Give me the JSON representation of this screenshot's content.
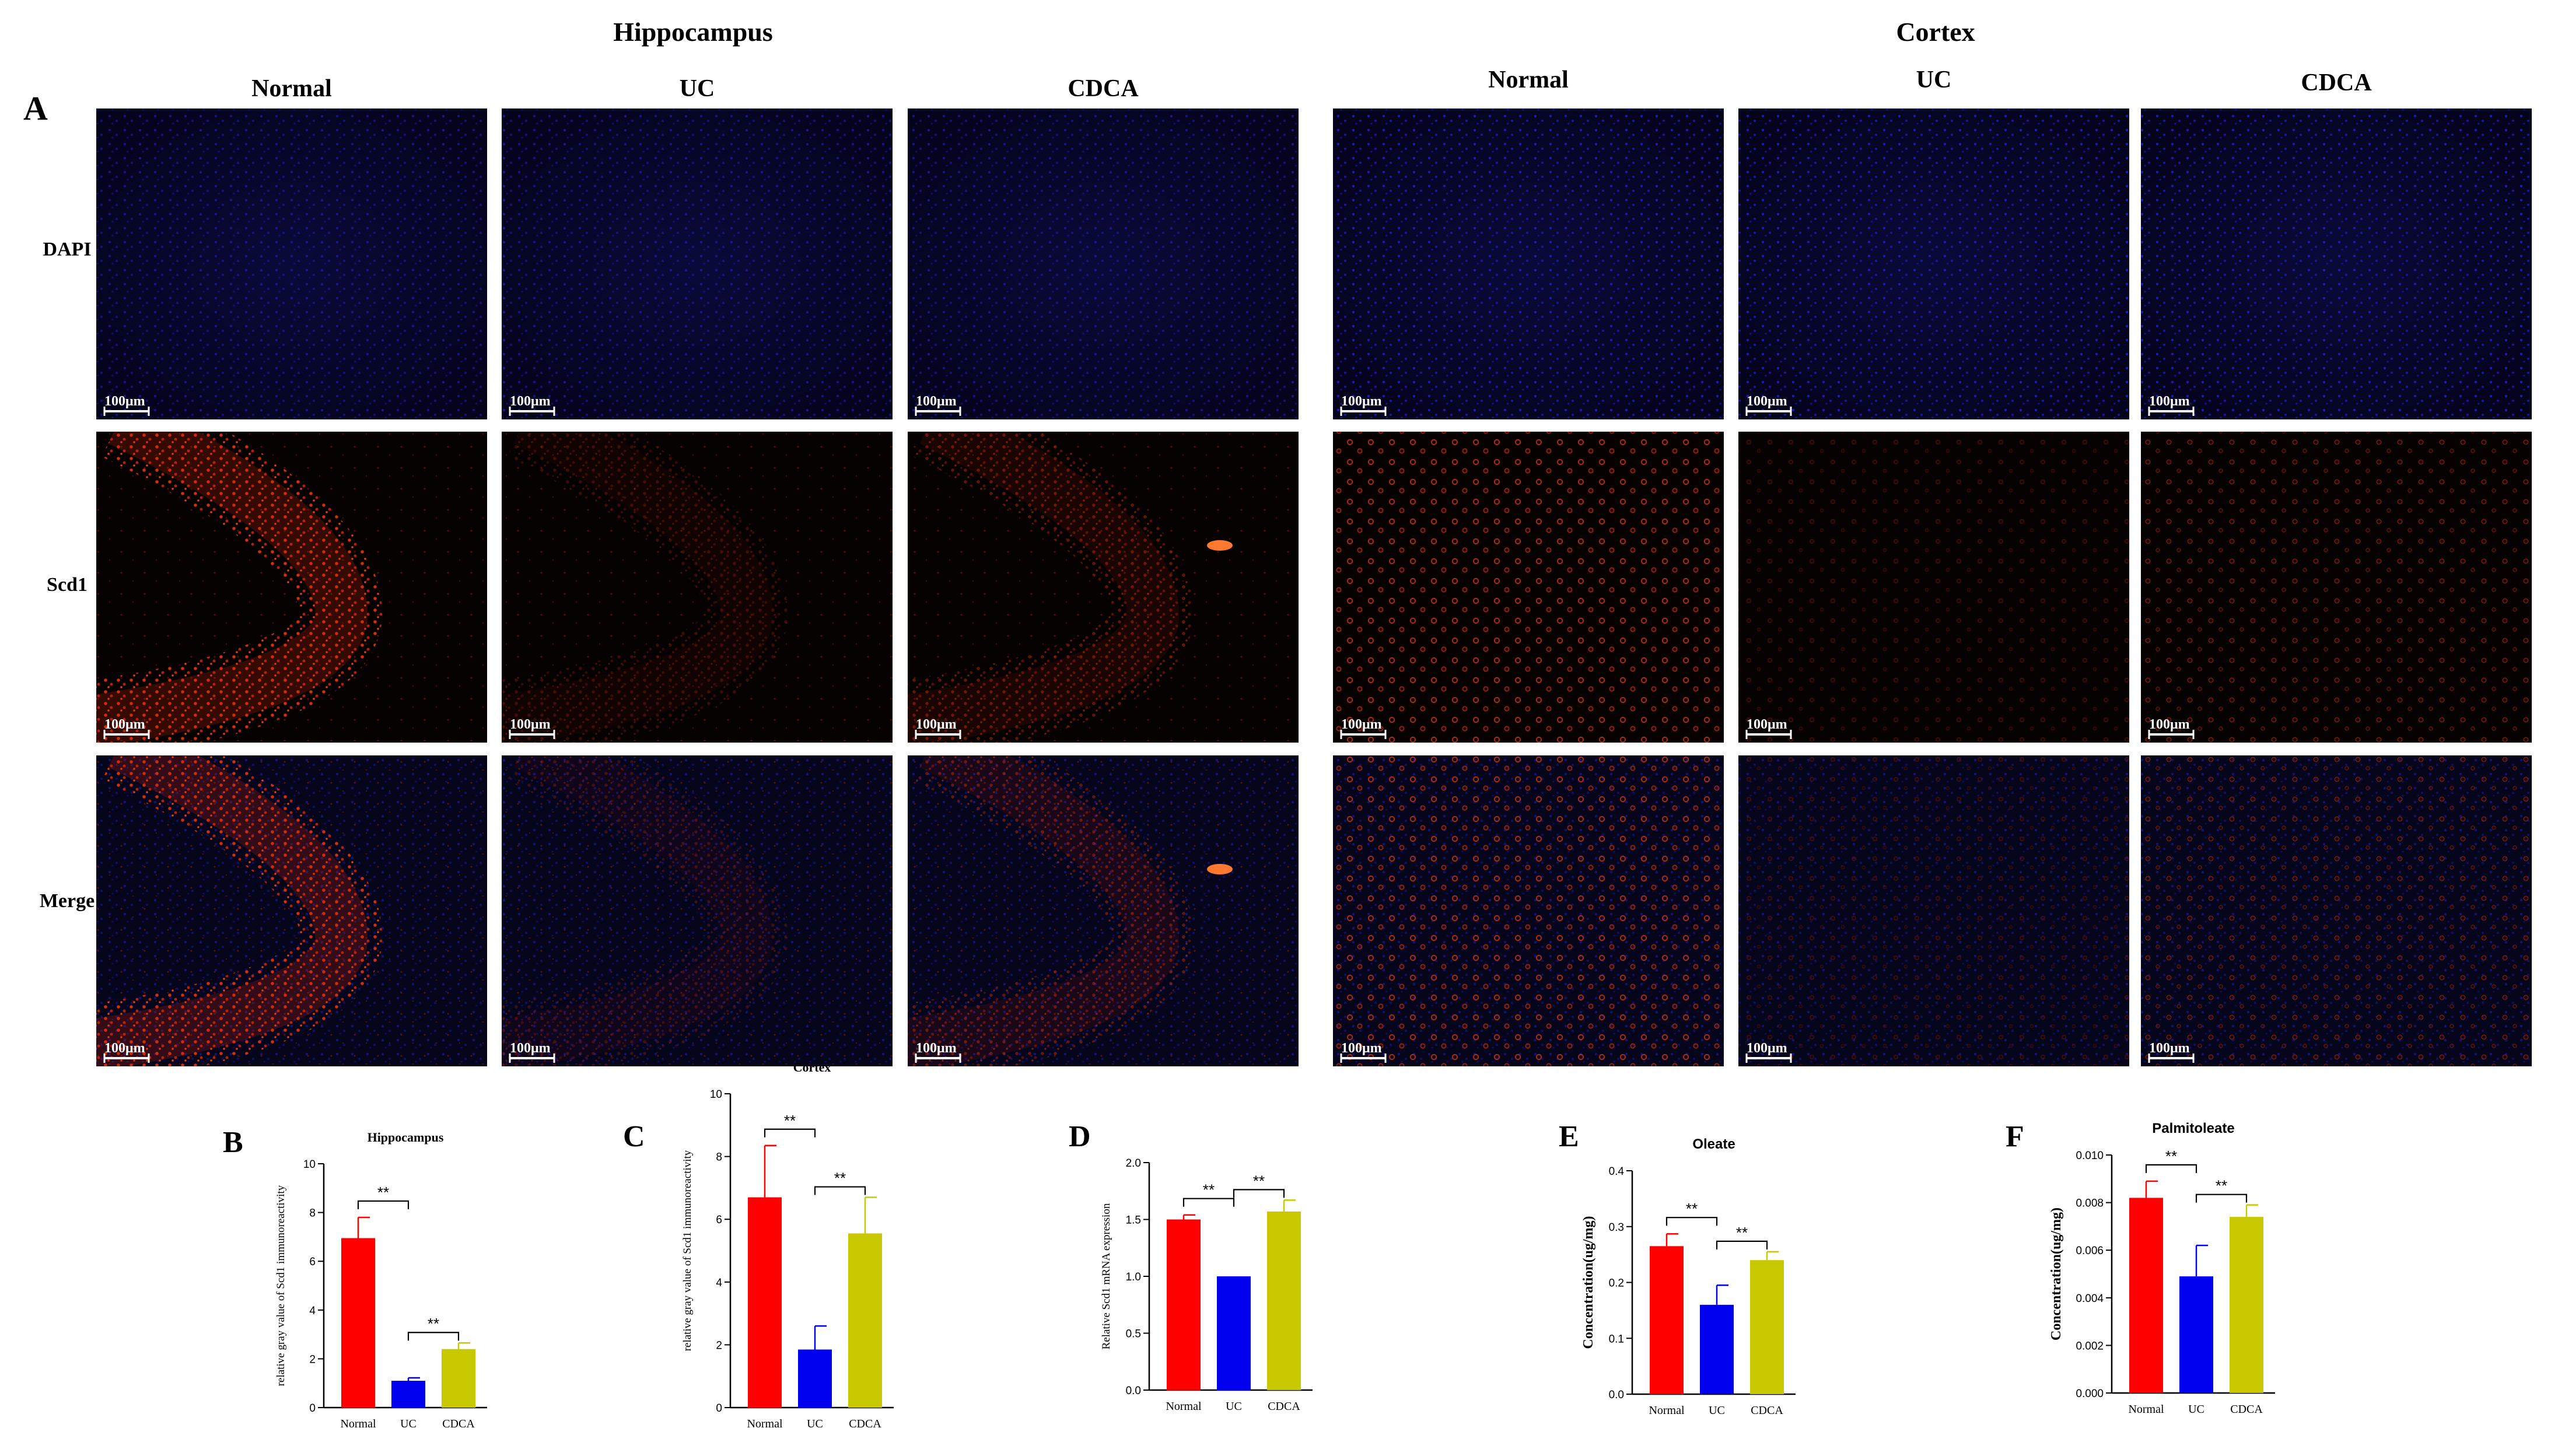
{
  "panel_a": {
    "letter": "A",
    "regions": [
      "Hippocampus",
      "Cortex"
    ],
    "groups": [
      "Normal",
      "UC",
      "CDCA"
    ],
    "rows": [
      "DAPI",
      "Scd1",
      "Merge"
    ],
    "scale_bar": "100μm"
  },
  "chart_data": [
    {
      "type": "bar",
      "letter": "B",
      "title": "Hippocampus",
      "categories": [
        "Normal",
        "UC",
        "CDCA"
      ],
      "values": [
        6.95,
        1.1,
        2.4
      ],
      "errors": [
        0.85,
        0.12,
        0.25
      ],
      "colors": [
        "#ff0000",
        "#0000ee",
        "#c8c800"
      ],
      "ylabel": "relative gray value of Scd1 immunoreactivity",
      "ylim": [
        0,
        10
      ],
      "yticks": [
        "0",
        "2",
        "4",
        "6",
        "8",
        "10"
      ],
      "significance": [
        {
          "from": 0,
          "to": 1,
          "label": "**"
        },
        {
          "from": 1,
          "to": 2,
          "label": "**"
        }
      ]
    },
    {
      "type": "bar",
      "letter": "C",
      "title": "Cortex",
      "categories": [
        "Normal",
        "UC",
        "CDCA"
      ],
      "values": [
        6.7,
        1.85,
        5.55
      ],
      "errors": [
        1.65,
        0.75,
        1.15
      ],
      "colors": [
        "#ff0000",
        "#0000ee",
        "#c8c800"
      ],
      "ylabel": "relative gray value of Scd1 immunoreactivity",
      "ylim": [
        0,
        10
      ],
      "yticks": [
        "0",
        "2",
        "4",
        "6",
        "8",
        "10"
      ],
      "significance": [
        {
          "from": 0,
          "to": 1,
          "label": "**"
        },
        {
          "from": 1,
          "to": 2,
          "label": "**"
        }
      ]
    },
    {
      "type": "bar",
      "letter": "D",
      "title": "",
      "categories": [
        "Normal",
        "UC",
        "CDCA"
      ],
      "values": [
        1.5,
        1.0,
        1.57
      ],
      "errors": [
        0.04,
        0.0,
        0.1
      ],
      "colors": [
        "#ff0000",
        "#0000ee",
        "#c8c800"
      ],
      "ylabel": "Relative Scd1 mRNA expression",
      "ylim": [
        0,
        2
      ],
      "yticks": [
        "0.0",
        "0.5",
        "1.0",
        "1.5",
        "2.0"
      ],
      "significance": [
        {
          "from": 0,
          "to": 1,
          "label": "**"
        },
        {
          "from": 1,
          "to": 2,
          "label": "**"
        }
      ]
    },
    {
      "type": "bar",
      "letter": "E",
      "title": "Oleate",
      "categories": [
        "Normal",
        "UC",
        "CDCA"
      ],
      "values": [
        0.265,
        0.16,
        0.24
      ],
      "errors": [
        0.022,
        0.035,
        0.015
      ],
      "colors": [
        "#ff0000",
        "#0000ee",
        "#c8c800"
      ],
      "ylabel": "Concentration(ug/mg)",
      "ylim": [
        0,
        0.4
      ],
      "yticks": [
        "0.0",
        "0.1",
        "0.2",
        "0.3",
        "0.4"
      ],
      "significance": [
        {
          "from": 0,
          "to": 1,
          "label": "**"
        },
        {
          "from": 1,
          "to": 2,
          "label": "**"
        }
      ]
    },
    {
      "type": "bar",
      "letter": "F",
      "title": "Palmitoleate",
      "categories": [
        "Normal",
        "UC",
        "CDCA"
      ],
      "values": [
        0.0082,
        0.0049,
        0.0074
      ],
      "errors": [
        0.0007,
        0.0013,
        0.0005
      ],
      "colors": [
        "#ff0000",
        "#0000ee",
        "#c8c800"
      ],
      "ylabel": "Concentration(ug/mg)",
      "ylim": [
        0,
        0.01
      ],
      "yticks": [
        "0.000",
        "0.002",
        "0.004",
        "0.006",
        "0.008",
        "0.010"
      ],
      "significance": [
        {
          "from": 0,
          "to": 1,
          "label": "**"
        },
        {
          "from": 1,
          "to": 2,
          "label": "**"
        }
      ]
    }
  ]
}
